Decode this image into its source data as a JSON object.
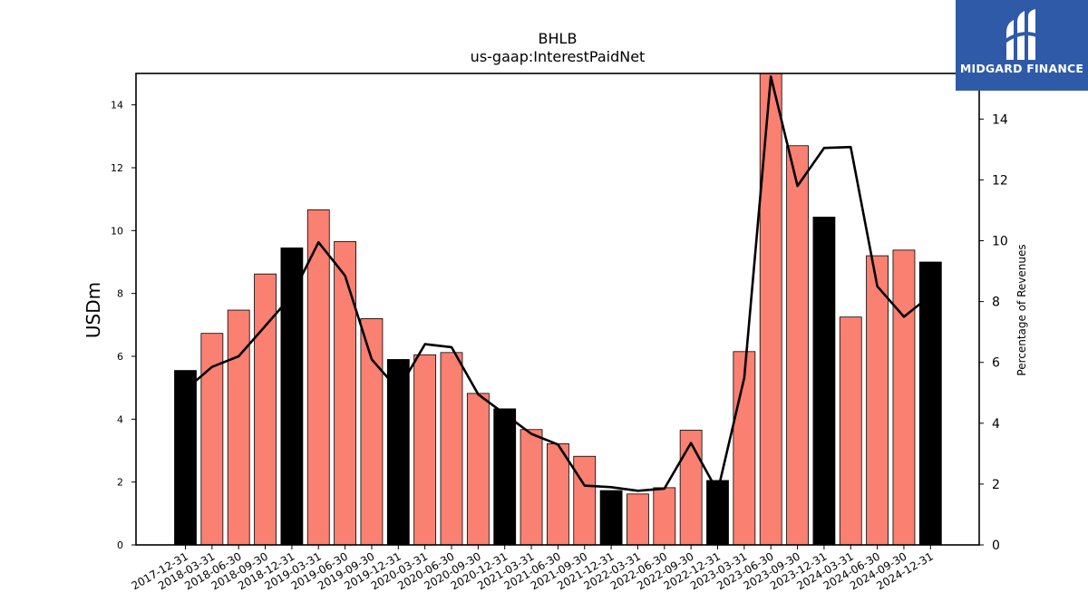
{
  "chart_data": {
    "type": "bar",
    "title": "BHLB",
    "subtitle": "us-gaap:InterestPaidNet",
    "ylabel": "USDm",
    "y2label": "Percentage of Revenues",
    "ylim": [
      0,
      15
    ],
    "y2lim": [
      0,
      15.5
    ],
    "yticks": [
      0,
      2,
      4,
      6,
      8,
      10,
      12,
      14
    ],
    "y2ticks": [
      0,
      2,
      4,
      6,
      8,
      10,
      12,
      14
    ],
    "categories": [
      "2017-12-31",
      "2018-03-31",
      "2018-06-30",
      "2018-09-30",
      "2018-12-31",
      "2019-03-31",
      "2019-06-30",
      "2019-09-30",
      "2019-12-31",
      "2020-03-31",
      "2020-06-30",
      "2020-09-30",
      "2020-12-31",
      "2021-03-31",
      "2021-06-30",
      "2021-09-30",
      "2021-12-31",
      "2022-03-31",
      "2022-06-30",
      "2022-09-30",
      "2022-12-31",
      "2023-03-31",
      "2023-06-30",
      "2023-09-30",
      "2023-12-31",
      "2024-03-31",
      "2024-06-30",
      "2024-09-30",
      "2024-12-31"
    ],
    "series": [
      {
        "type": "bar",
        "values": [
          5.55,
          6.73,
          7.47,
          8.62,
          9.45,
          10.66,
          9.65,
          7.2,
          5.9,
          6.05,
          6.12,
          4.82,
          4.33,
          3.67,
          3.22,
          2.82,
          1.73,
          1.62,
          1.82,
          3.65,
          2.05,
          6.15,
          15.0,
          12.7,
          10.43,
          7.25,
          9.2,
          9.38,
          9.0
        ],
        "colors": [
          "#000000",
          "#fa8072",
          "#fa8072",
          "#fa8072",
          "#000000",
          "#fa8072",
          "#fa8072",
          "#fa8072",
          "#000000",
          "#fa8072",
          "#fa8072",
          "#fa8072",
          "#000000",
          "#fa8072",
          "#fa8072",
          "#fa8072",
          "#000000",
          "#fa8072",
          "#fa8072",
          "#fa8072",
          "#000000",
          "#fa8072",
          "#fa8072",
          "#fa8072",
          "#000000",
          "#fa8072",
          "#fa8072",
          "#fa8072",
          "#000000"
        ]
      },
      {
        "type": "line",
        "axis": "right",
        "color": "#000000",
        "values": [
          5.1,
          5.85,
          6.2,
          7.2,
          8.2,
          9.95,
          8.85,
          6.1,
          5.1,
          6.6,
          6.5,
          4.95,
          4.3,
          3.65,
          3.3,
          1.95,
          1.9,
          1.78,
          1.85,
          3.35,
          1.75,
          5.5,
          15.4,
          11.8,
          13.05,
          13.08,
          8.5,
          7.5,
          8.2
        ]
      }
    ],
    "grid": false
  },
  "logo": {
    "text": "MIDGARD FINANCE",
    "background": "#2f5aa8"
  }
}
